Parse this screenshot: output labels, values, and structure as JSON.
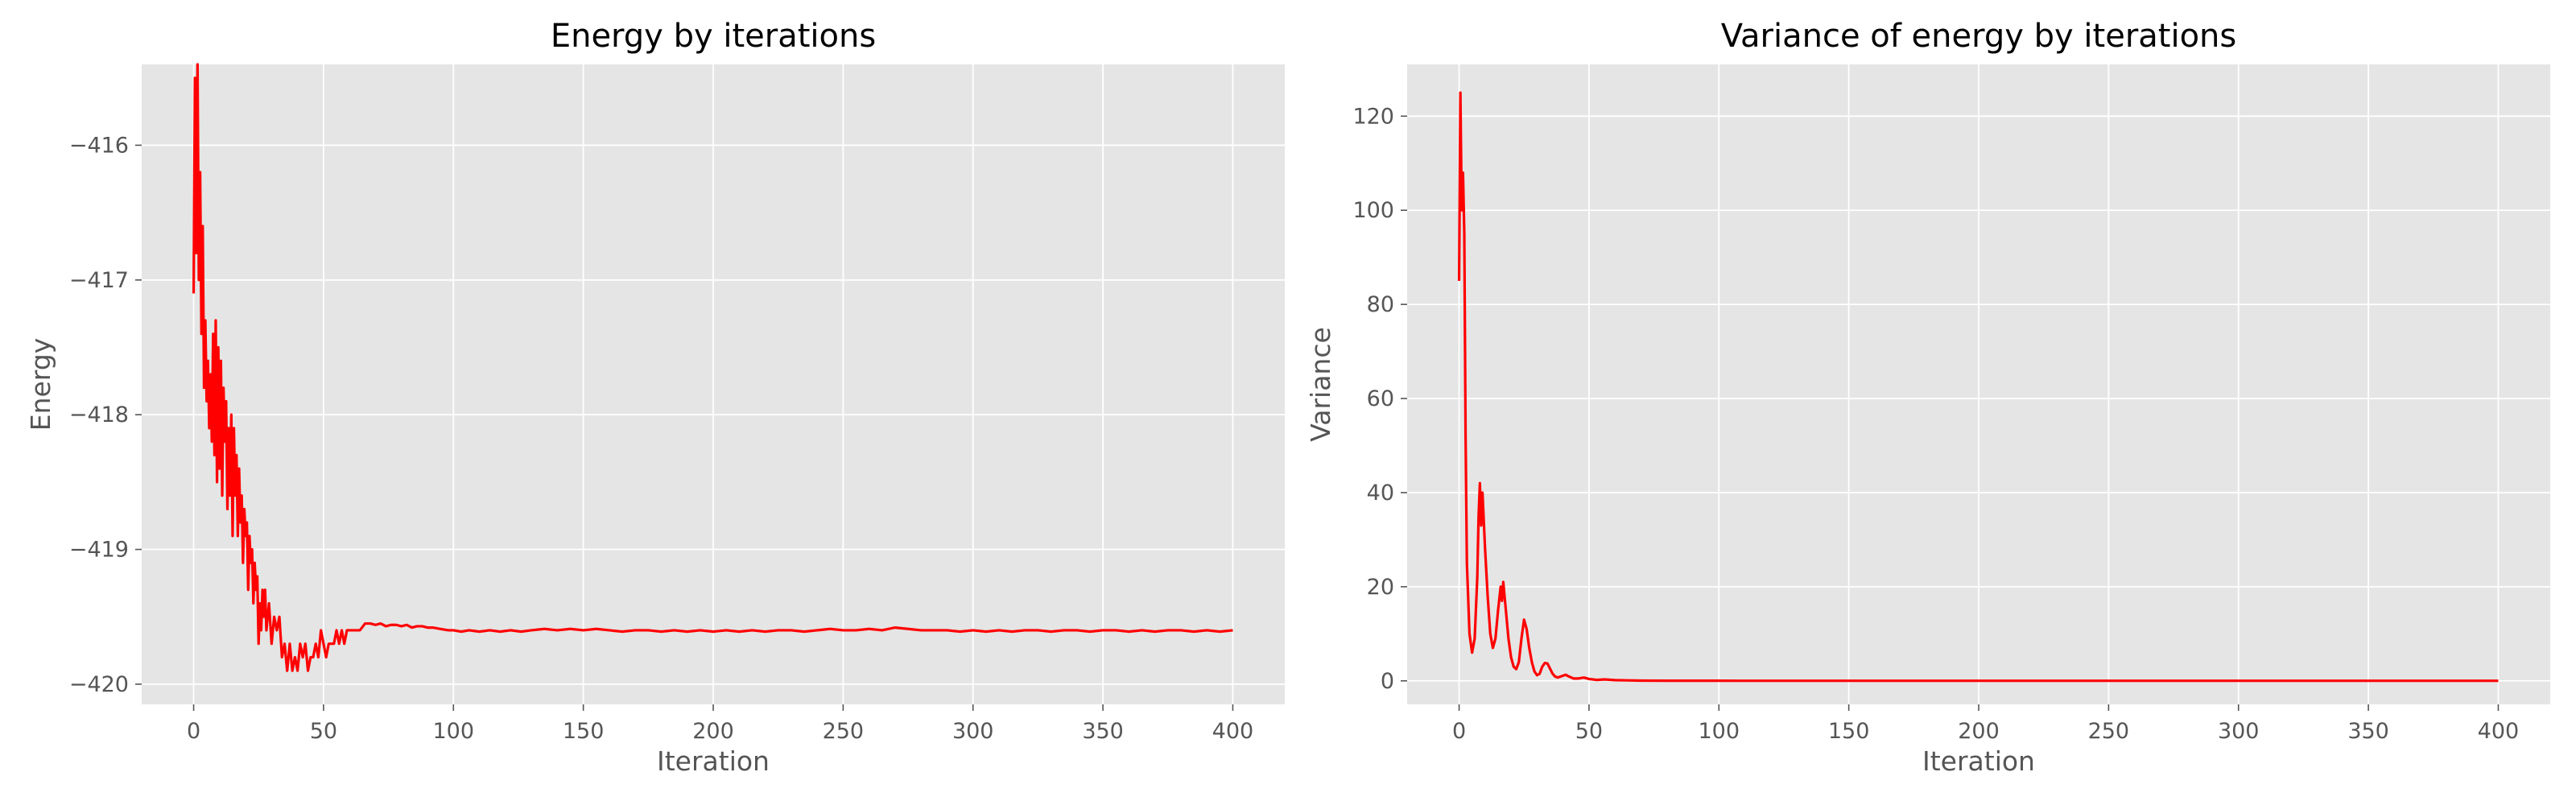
{
  "chart_data": [
    {
      "type": "line",
      "title": "Energy by iterations",
      "xlabel": "Iteration",
      "ylabel": "Energy",
      "xlim": [
        -20,
        420
      ],
      "ylim": [
        -420.15,
        -415.4
      ],
      "xticks": [
        0,
        50,
        100,
        150,
        200,
        250,
        300,
        350,
        400
      ],
      "yticks": [
        -420,
        -419,
        -418,
        -417,
        -416
      ],
      "grid": true,
      "series_color": "#ff0000",
      "series": [
        {
          "points": [
            [
              0,
              -417.1
            ],
            [
              0.5,
              -415.5
            ],
            [
              1,
              -416.8
            ],
            [
              1.5,
              -415.4
            ],
            [
              2,
              -417.0
            ],
            [
              2.5,
              -416.2
            ],
            [
              3,
              -417.4
            ],
            [
              3.5,
              -416.6
            ],
            [
              4,
              -417.8
            ],
            [
              4.5,
              -417.3
            ],
            [
              5,
              -417.9
            ],
            [
              5.5,
              -417.6
            ],
            [
              6,
              -418.1
            ],
            [
              6.5,
              -417.7
            ],
            [
              7,
              -418.2
            ],
            [
              7.5,
              -417.4
            ],
            [
              8,
              -418.3
            ],
            [
              8.5,
              -417.3
            ],
            [
              9,
              -418.5
            ],
            [
              9.5,
              -417.5
            ],
            [
              10,
              -418.4
            ],
            [
              10.5,
              -417.6
            ],
            [
              11,
              -418.6
            ],
            [
              11.5,
              -417.8
            ],
            [
              12,
              -418.2
            ],
            [
              12.5,
              -417.9
            ],
            [
              13,
              -418.7
            ],
            [
              13.5,
              -418.1
            ],
            [
              14,
              -418.6
            ],
            [
              14.5,
              -418.0
            ],
            [
              15,
              -418.9
            ],
            [
              15.5,
              -418.1
            ],
            [
              16,
              -418.6
            ],
            [
              16.5,
              -418.3
            ],
            [
              17,
              -418.9
            ],
            [
              17.5,
              -418.4
            ],
            [
              18,
              -418.8
            ],
            [
              18.5,
              -418.6
            ],
            [
              19,
              -419.1
            ],
            [
              19.5,
              -418.7
            ],
            [
              20,
              -418.9
            ],
            [
              20.5,
              -418.8
            ],
            [
              21,
              -419.3
            ],
            [
              21.5,
              -418.9
            ],
            [
              22,
              -419.1
            ],
            [
              22.5,
              -419.0
            ],
            [
              23,
              -419.4
            ],
            [
              23.5,
              -419.1
            ],
            [
              24,
              -419.3
            ],
            [
              24.5,
              -419.2
            ],
            [
              25,
              -419.7
            ],
            [
              25.5,
              -419.4
            ],
            [
              26,
              -419.6
            ],
            [
              26.5,
              -419.3
            ],
            [
              27,
              -419.5
            ],
            [
              27.5,
              -419.3
            ],
            [
              28,
              -419.6
            ],
            [
              29,
              -419.4
            ],
            [
              30,
              -419.7
            ],
            [
              31,
              -419.5
            ],
            [
              32,
              -419.6
            ],
            [
              33,
              -419.5
            ],
            [
              34,
              -419.8
            ],
            [
              35,
              -419.7
            ],
            [
              36,
              -419.9
            ],
            [
              37,
              -419.7
            ],
            [
              38,
              -419.9
            ],
            [
              39,
              -419.8
            ],
            [
              40,
              -419.9
            ],
            [
              41,
              -419.7
            ],
            [
              42,
              -419.8
            ],
            [
              43,
              -419.7
            ],
            [
              44,
              -419.9
            ],
            [
              45,
              -419.8
            ],
            [
              46,
              -419.8
            ],
            [
              47,
              -419.7
            ],
            [
              48,
              -419.8
            ],
            [
              49,
              -419.6
            ],
            [
              50,
              -419.7
            ],
            [
              51,
              -419.8
            ],
            [
              52,
              -419.7
            ],
            [
              53,
              -419.7
            ],
            [
              54,
              -419.7
            ],
            [
              55,
              -419.6
            ],
            [
              56,
              -419.7
            ],
            [
              57,
              -419.6
            ],
            [
              58,
              -419.7
            ],
            [
              59,
              -419.6
            ],
            [
              60,
              -419.6
            ],
            [
              62,
              -419.6
            ],
            [
              64,
              -419.6
            ],
            [
              66,
              -419.55
            ],
            [
              68,
              -419.55
            ],
            [
              70,
              -419.56
            ],
            [
              72,
              -419.55
            ],
            [
              74,
              -419.57
            ],
            [
              76,
              -419.56
            ],
            [
              78,
              -419.56
            ],
            [
              80,
              -419.57
            ],
            [
              82,
              -419.56
            ],
            [
              84,
              -419.58
            ],
            [
              86,
              -419.57
            ],
            [
              88,
              -419.57
            ],
            [
              90,
              -419.58
            ],
            [
              92,
              -419.58
            ],
            [
              95,
              -419.59
            ],
            [
              98,
              -419.6
            ],
            [
              100,
              -419.6
            ],
            [
              103,
              -419.61
            ],
            [
              106,
              -419.6
            ],
            [
              110,
              -419.61
            ],
            [
              114,
              -419.6
            ],
            [
              118,
              -419.61
            ],
            [
              122,
              -419.6
            ],
            [
              126,
              -419.61
            ],
            [
              130,
              -419.6
            ],
            [
              135,
              -419.59
            ],
            [
              140,
              -419.6
            ],
            [
              145,
              -419.59
            ],
            [
              150,
              -419.6
            ],
            [
              155,
              -419.59
            ],
            [
              160,
              -419.6
            ],
            [
              165,
              -419.61
            ],
            [
              170,
              -419.6
            ],
            [
              175,
              -419.6
            ],
            [
              180,
              -419.61
            ],
            [
              185,
              -419.6
            ],
            [
              190,
              -419.61
            ],
            [
              195,
              -419.6
            ],
            [
              200,
              -419.61
            ],
            [
              205,
              -419.6
            ],
            [
              210,
              -419.61
            ],
            [
              215,
              -419.6
            ],
            [
              220,
              -419.61
            ],
            [
              225,
              -419.6
            ],
            [
              230,
              -419.6
            ],
            [
              235,
              -419.61
            ],
            [
              240,
              -419.6
            ],
            [
              245,
              -419.59
            ],
            [
              250,
              -419.6
            ],
            [
              255,
              -419.6
            ],
            [
              260,
              -419.59
            ],
            [
              265,
              -419.6
            ],
            [
              270,
              -419.58
            ],
            [
              275,
              -419.59
            ],
            [
              280,
              -419.6
            ],
            [
              285,
              -419.6
            ],
            [
              290,
              -419.6
            ],
            [
              295,
              -419.61
            ],
            [
              300,
              -419.6
            ],
            [
              305,
              -419.61
            ],
            [
              310,
              -419.6
            ],
            [
              315,
              -419.61
            ],
            [
              320,
              -419.6
            ],
            [
              325,
              -419.6
            ],
            [
              330,
              -419.61
            ],
            [
              335,
              -419.6
            ],
            [
              340,
              -419.6
            ],
            [
              345,
              -419.61
            ],
            [
              350,
              -419.6
            ],
            [
              355,
              -419.6
            ],
            [
              360,
              -419.61
            ],
            [
              365,
              -419.6
            ],
            [
              370,
              -419.61
            ],
            [
              375,
              -419.6
            ],
            [
              380,
              -419.6
            ],
            [
              385,
              -419.61
            ],
            [
              390,
              -419.6
            ],
            [
              395,
              -419.61
            ],
            [
              400,
              -419.6
            ]
          ]
        }
      ]
    },
    {
      "type": "line",
      "title": "Variance of energy by iterations",
      "xlabel": "Iteration",
      "ylabel": "Variance",
      "xlim": [
        -20,
        420
      ],
      "ylim": [
        -5,
        131
      ],
      "xticks": [
        0,
        50,
        100,
        150,
        200,
        250,
        300,
        350,
        400
      ],
      "yticks": [
        0,
        20,
        40,
        60,
        80,
        100,
        120
      ],
      "grid": true,
      "series_color": "#ff0000",
      "series": [
        {
          "points": [
            [
              0,
              85
            ],
            [
              0.5,
              125
            ],
            [
              1,
              100
            ],
            [
              1.5,
              108
            ],
            [
              2,
              95
            ],
            [
              2.5,
              52
            ],
            [
              3,
              25
            ],
            [
              4,
              10
            ],
            [
              5,
              6
            ],
            [
              6,
              9
            ],
            [
              7,
              22
            ],
            [
              7.5,
              35
            ],
            [
              8,
              42
            ],
            [
              8.5,
              33
            ],
            [
              9,
              40
            ],
            [
              10,
              28
            ],
            [
              11,
              18
            ],
            [
              12,
              10
            ],
            [
              13,
              7
            ],
            [
              14,
              9
            ],
            [
              15,
              15
            ],
            [
              16,
              20
            ],
            [
              16.5,
              17
            ],
            [
              17,
              21
            ],
            [
              18,
              15
            ],
            [
              19,
              9
            ],
            [
              20,
              5
            ],
            [
              21,
              3
            ],
            [
              22,
              2.5
            ],
            [
              23,
              4
            ],
            [
              24,
              9
            ],
            [
              25,
              13
            ],
            [
              26,
              11
            ],
            [
              27,
              7
            ],
            [
              28,
              4
            ],
            [
              29,
              2
            ],
            [
              30,
              1.2
            ],
            [
              31,
              1.5
            ],
            [
              32,
              3
            ],
            [
              33,
              3.8
            ],
            [
              34,
              3.7
            ],
            [
              35,
              2.6
            ],
            [
              36,
              1.5
            ],
            [
              37,
              0.9
            ],
            [
              38,
              0.7
            ],
            [
              40,
              1.1
            ],
            [
              41,
              1.3
            ],
            [
              42,
              1.0
            ],
            [
              44,
              0.5
            ],
            [
              46,
              0.5
            ],
            [
              48,
              0.7
            ],
            [
              50,
              0.4
            ],
            [
              53,
              0.2
            ],
            [
              56,
              0.3
            ],
            [
              60,
              0.15
            ],
            [
              65,
              0.1
            ],
            [
              70,
              0.05
            ],
            [
              80,
              0.03
            ],
            [
              100,
              0.02
            ],
            [
              150,
              0.01
            ],
            [
              200,
              0.01
            ],
            [
              250,
              0.01
            ],
            [
              300,
              0.01
            ],
            [
              350,
              0.01
            ],
            [
              400,
              0.01
            ]
          ]
        }
      ]
    }
  ]
}
